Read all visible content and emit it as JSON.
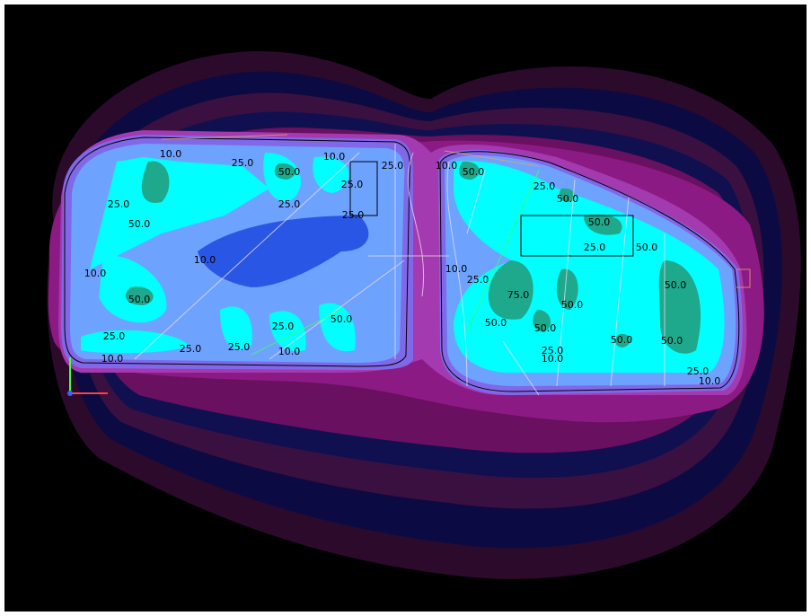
{
  "contour_labels": [
    "10.0",
    "25.0",
    "10.0",
    "25.0",
    "50.0",
    "25.0",
    "25.0",
    "25.0",
    "50.0",
    "10.0",
    "25.0",
    "10.0",
    "50.0",
    "25.0",
    "50.0",
    "25.0",
    "25.0",
    "25.0",
    "10.0",
    "10.0",
    "10.0",
    "50.0",
    "25.0",
    "50.0",
    "50.0",
    "25.0",
    "50.0",
    "10.0",
    "25.0",
    "75.0",
    "50.0",
    "50.0",
    "50.0",
    "50.0",
    "50.0",
    "50.0",
    "25.0",
    "10.0",
    "25.0",
    "10.0"
  ]
}
